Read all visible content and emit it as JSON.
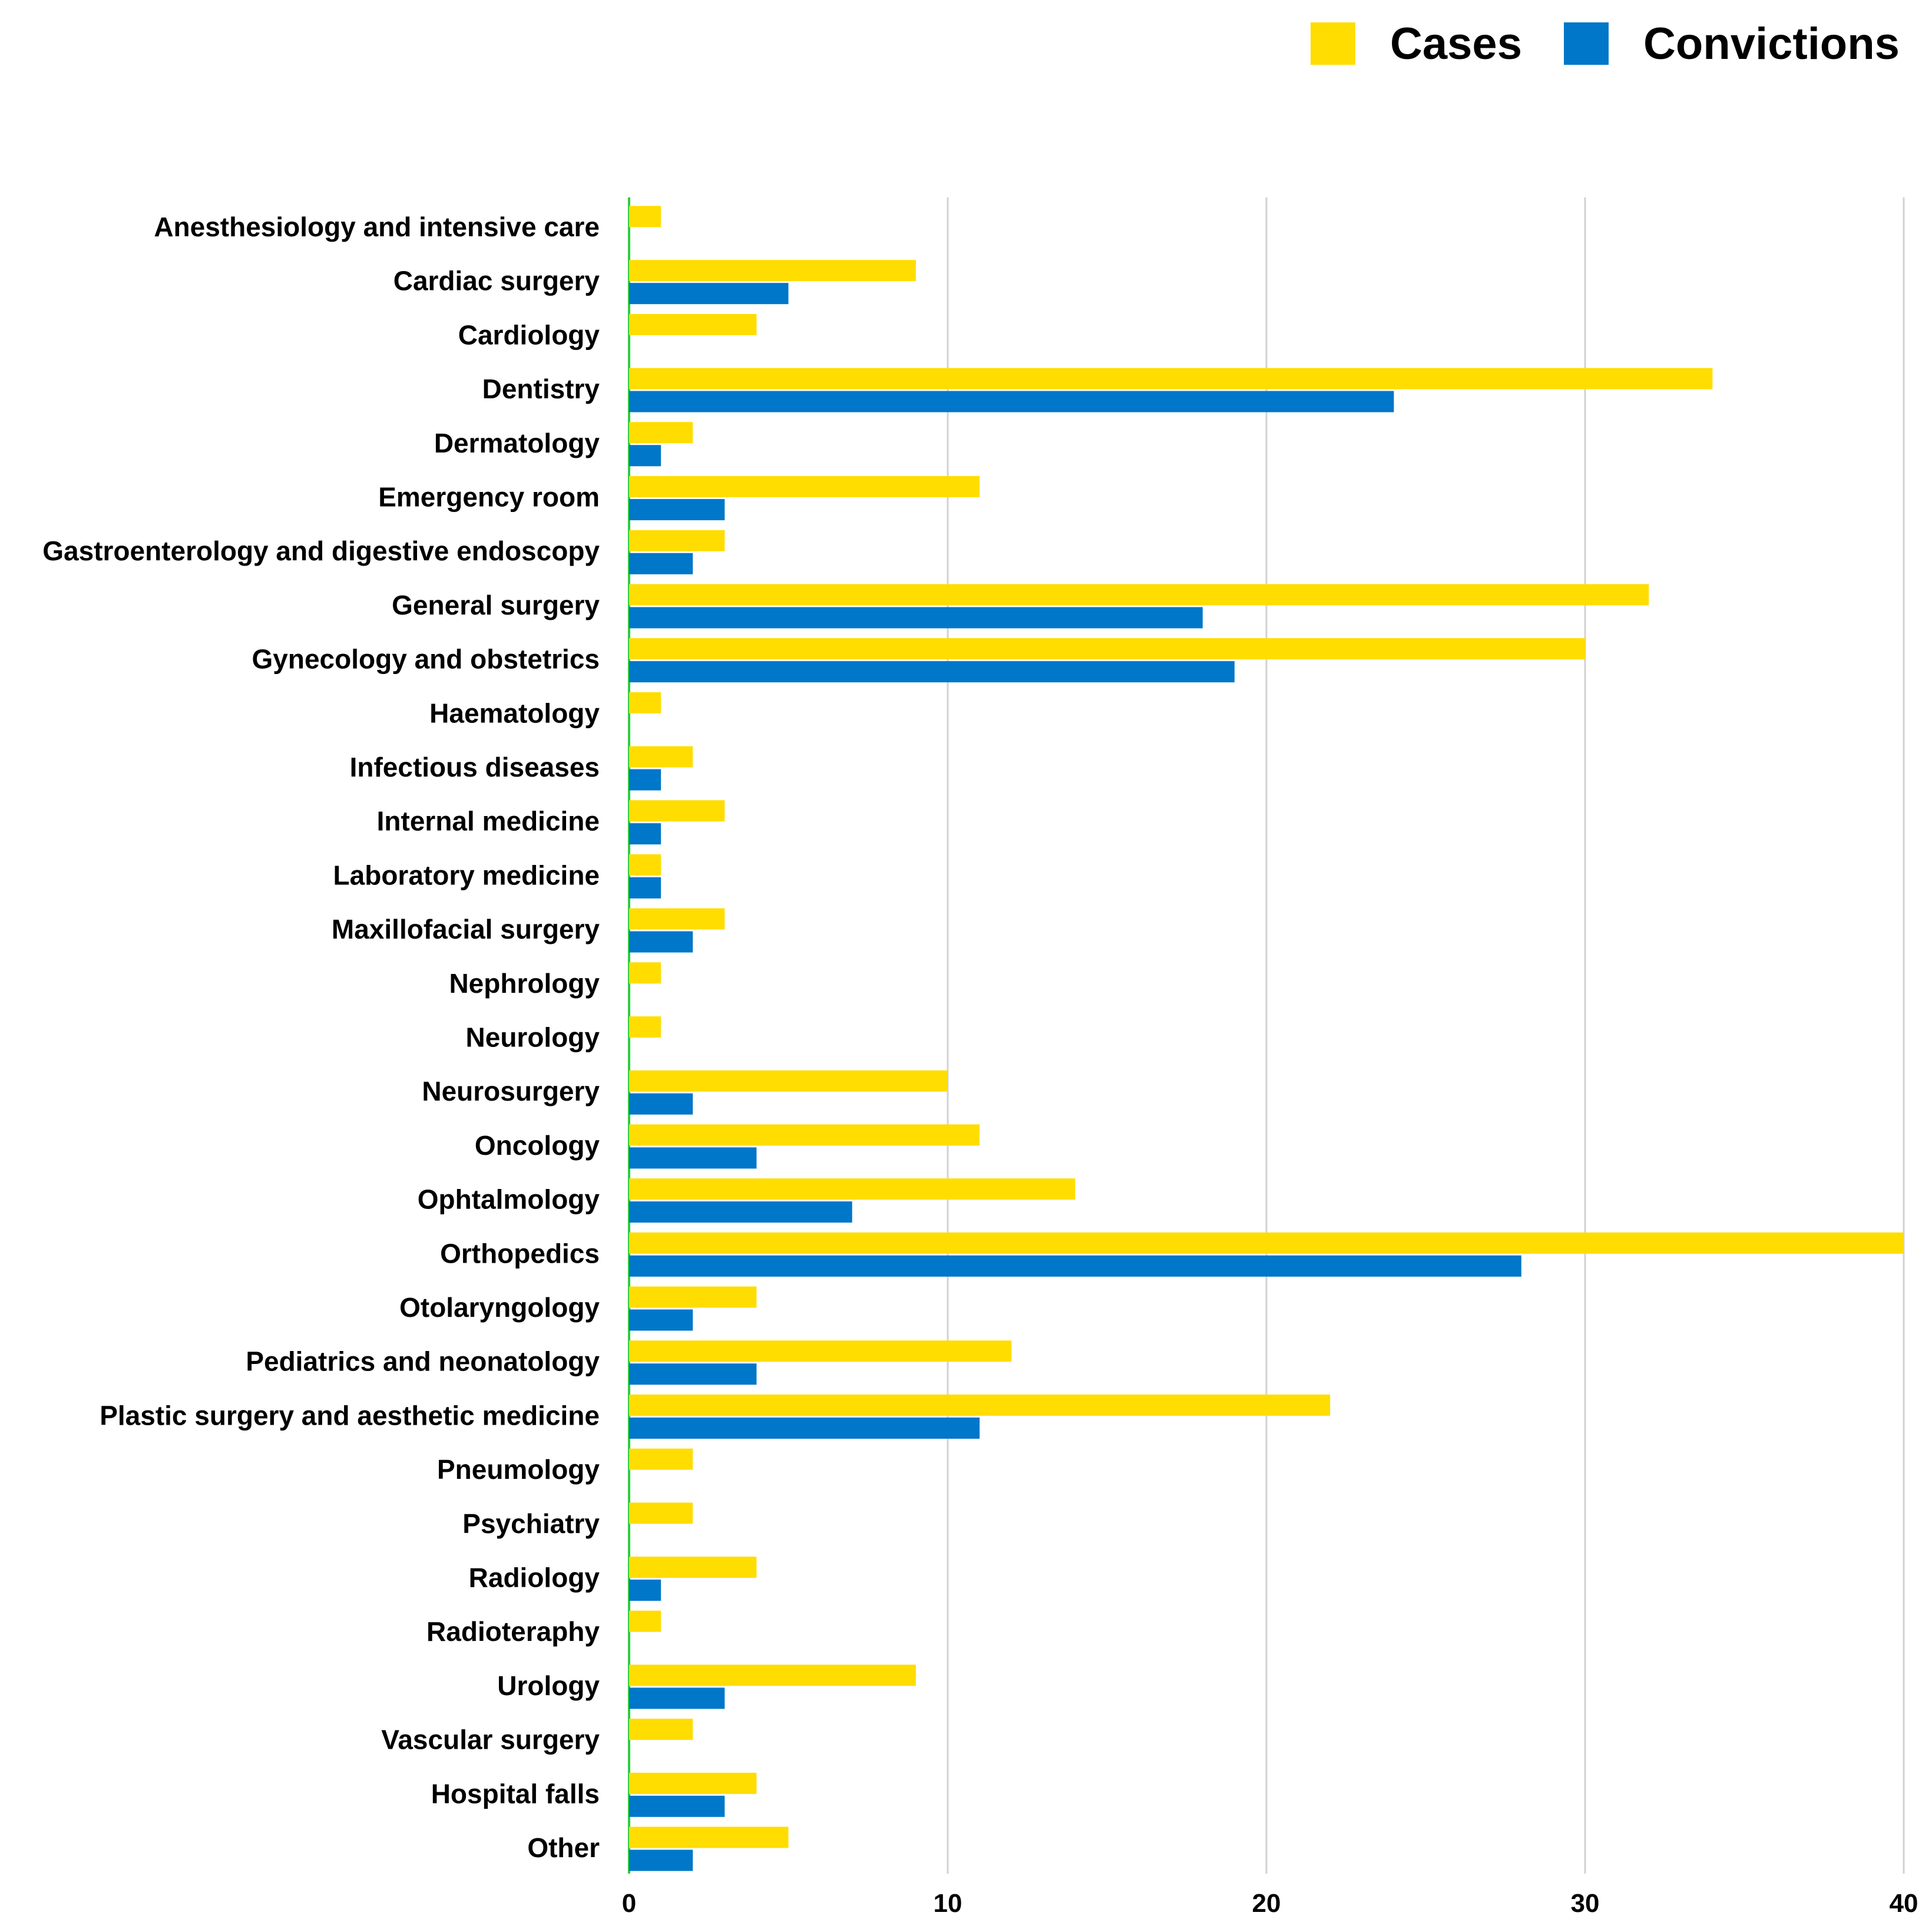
{
  "chart_data": {
    "type": "bar",
    "orientation": "horizontal",
    "categories": [
      "Anesthesiology and intensive care",
      "Cardiac surgery",
      "Cardiology",
      "Dentistry",
      "Dermatology",
      "Emergency room",
      "Gastroenterology and digestive endoscopy",
      "General surgery",
      "Gynecology and obstetrics",
      "Haematology",
      "Infectious diseases",
      "Internal medicine",
      "Laboratory medicine",
      "Maxillofacial surgery",
      "Nephrology",
      "Neurology",
      "Neurosurgery",
      "Oncology",
      "Ophtalmology",
      "Orthopedics",
      "Otolaryngology",
      "Pediatrics and neonatology",
      "Plastic surgery and aesthetic medicine",
      "Pneumology",
      "Psychiatry",
      "Radiology",
      "Radioteraphy",
      "Urology",
      "Vascular surgery",
      "Hospital falls",
      "Other"
    ],
    "series": [
      {
        "name": "Cases",
        "color": "#FFDD00",
        "values": [
          1,
          9,
          4,
          34,
          2,
          11,
          3,
          32,
          30,
          1,
          2,
          3,
          1,
          3,
          1,
          1,
          10,
          11,
          14,
          40,
          4,
          12,
          22,
          2,
          2,
          4,
          1,
          9,
          2,
          4,
          5
        ]
      },
      {
        "name": "Convictions",
        "color": "#0077C8",
        "values": [
          0,
          5,
          0,
          24,
          1,
          3,
          2,
          18,
          19,
          0,
          1,
          1,
          1,
          2,
          0,
          0,
          2,
          4,
          7,
          28,
          2,
          4,
          11,
          0,
          0,
          1,
          0,
          3,
          0,
          3,
          2
        ]
      }
    ],
    "xlim": [
      0,
      40
    ],
    "xticks": [
      "0",
      "10",
      "20",
      "30",
      "40"
    ],
    "grid": true,
    "legend_position": "top-right",
    "title": "",
    "xlabel": "",
    "ylabel": ""
  }
}
